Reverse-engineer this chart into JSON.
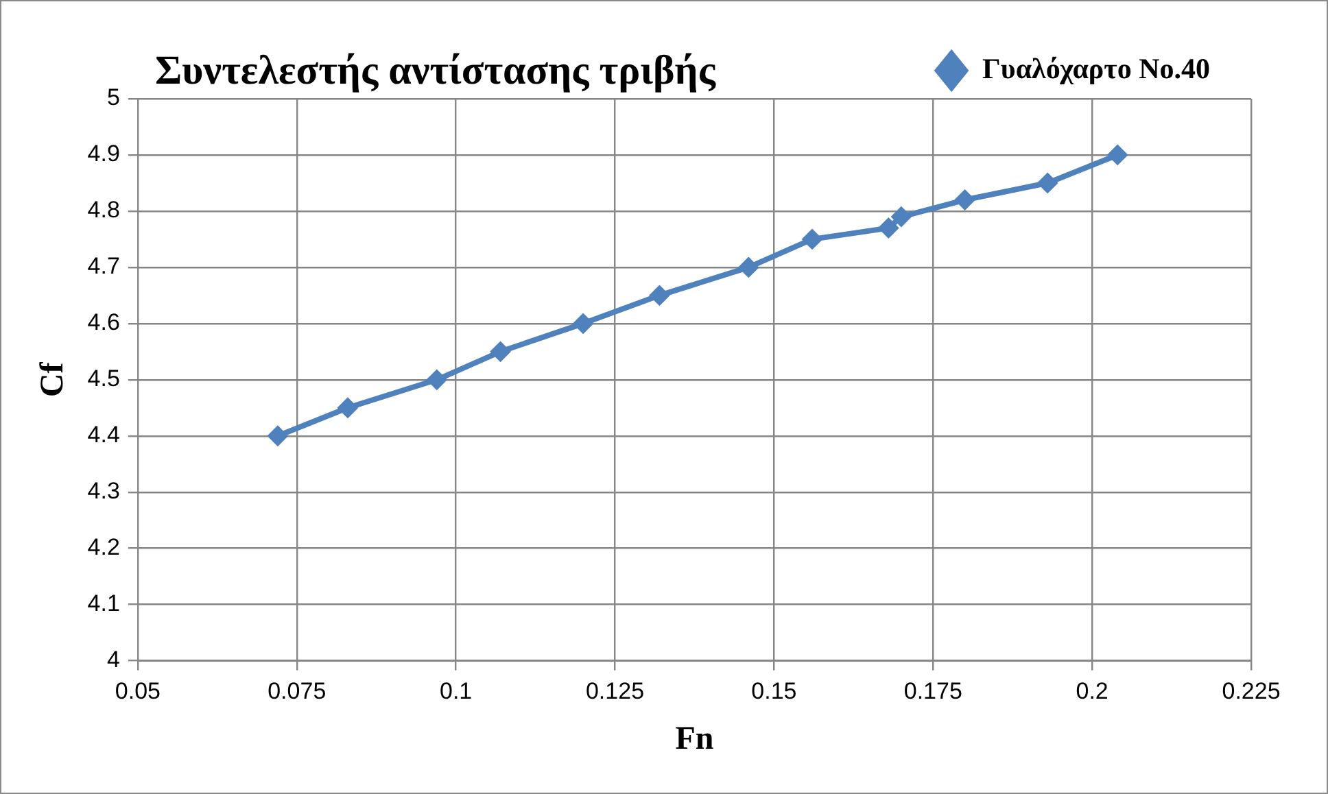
{
  "chart_data": {
    "type": "line",
    "title": "Συντελεστής αντίστασης τριβής",
    "xlabel": "Fn",
    "ylabel": "Cf",
    "series": [
      {
        "name": "Γυαλόχαρτο No.40",
        "color": "#4f81bd",
        "x": [
          0.072,
          0.083,
          0.097,
          0.107,
          0.12,
          0.132,
          0.146,
          0.156,
          0.168,
          0.17,
          0.18,
          0.193,
          0.204
        ],
        "values": [
          4.4,
          4.45,
          4.5,
          4.55,
          4.6,
          4.65,
          4.7,
          4.75,
          4.77,
          4.79,
          4.82,
          4.85,
          4.9
        ]
      }
    ],
    "xlim": [
      0.05,
      0.225
    ],
    "xticks": [
      0.05,
      0.075,
      0.1,
      0.125,
      0.15,
      0.175,
      0.2,
      0.225
    ],
    "ylim": [
      4,
      5
    ],
    "yticks": [
      4,
      4.1,
      4.2,
      4.3,
      4.4,
      4.5,
      4.6,
      4.7,
      4.8,
      4.9,
      5
    ],
    "grid": true,
    "legend": "top right",
    "marker": "diamond",
    "line_style": "solid"
  }
}
